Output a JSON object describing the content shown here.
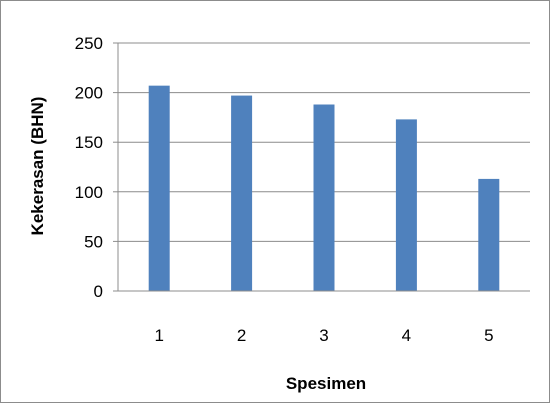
{
  "chart_data": {
    "type": "bar",
    "title": "",
    "xlabel": "Spesimen",
    "ylabel": "Kekerasan (BHN)",
    "categories": [
      "1",
      "2",
      "3",
      "4",
      "5"
    ],
    "values": [
      207,
      197,
      188,
      173,
      113
    ],
    "ylim": [
      0,
      250
    ],
    "yticks": [
      0,
      50,
      100,
      150,
      200,
      250
    ],
    "ytick_labels": [
      "0",
      "50",
      "100",
      "150",
      "200",
      "250"
    ],
    "grid": true,
    "legend": "none",
    "bar_color": "#4f81bd",
    "grid_color": "#8c8c8c"
  }
}
